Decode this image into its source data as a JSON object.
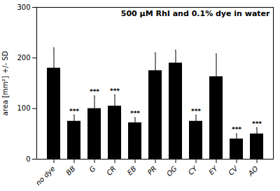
{
  "chart_data": {
    "type": "bar",
    "title": "500 μM RhI and 0.1% dye in water",
    "ylabel": "area [mm²] +/- SD",
    "categories": [
      "no dye",
      "BB",
      "G",
      "CR",
      "EB",
      "PR",
      "OG",
      "CY",
      "EY",
      "CV",
      "AO"
    ],
    "values": [
      180,
      75,
      100,
      105,
      72,
      175,
      190,
      75,
      163,
      40,
      50
    ],
    "errors": [
      40,
      12,
      25,
      22,
      10,
      35,
      25,
      12,
      45,
      10,
      12
    ],
    "significant": [
      false,
      true,
      true,
      true,
      true,
      false,
      false,
      true,
      false,
      true,
      true
    ],
    "annotation": "***",
    "color": "#000000",
    "ylim": [
      0,
      300
    ],
    "yticks": [
      0,
      100,
      200,
      300
    ],
    "grid": false
  }
}
